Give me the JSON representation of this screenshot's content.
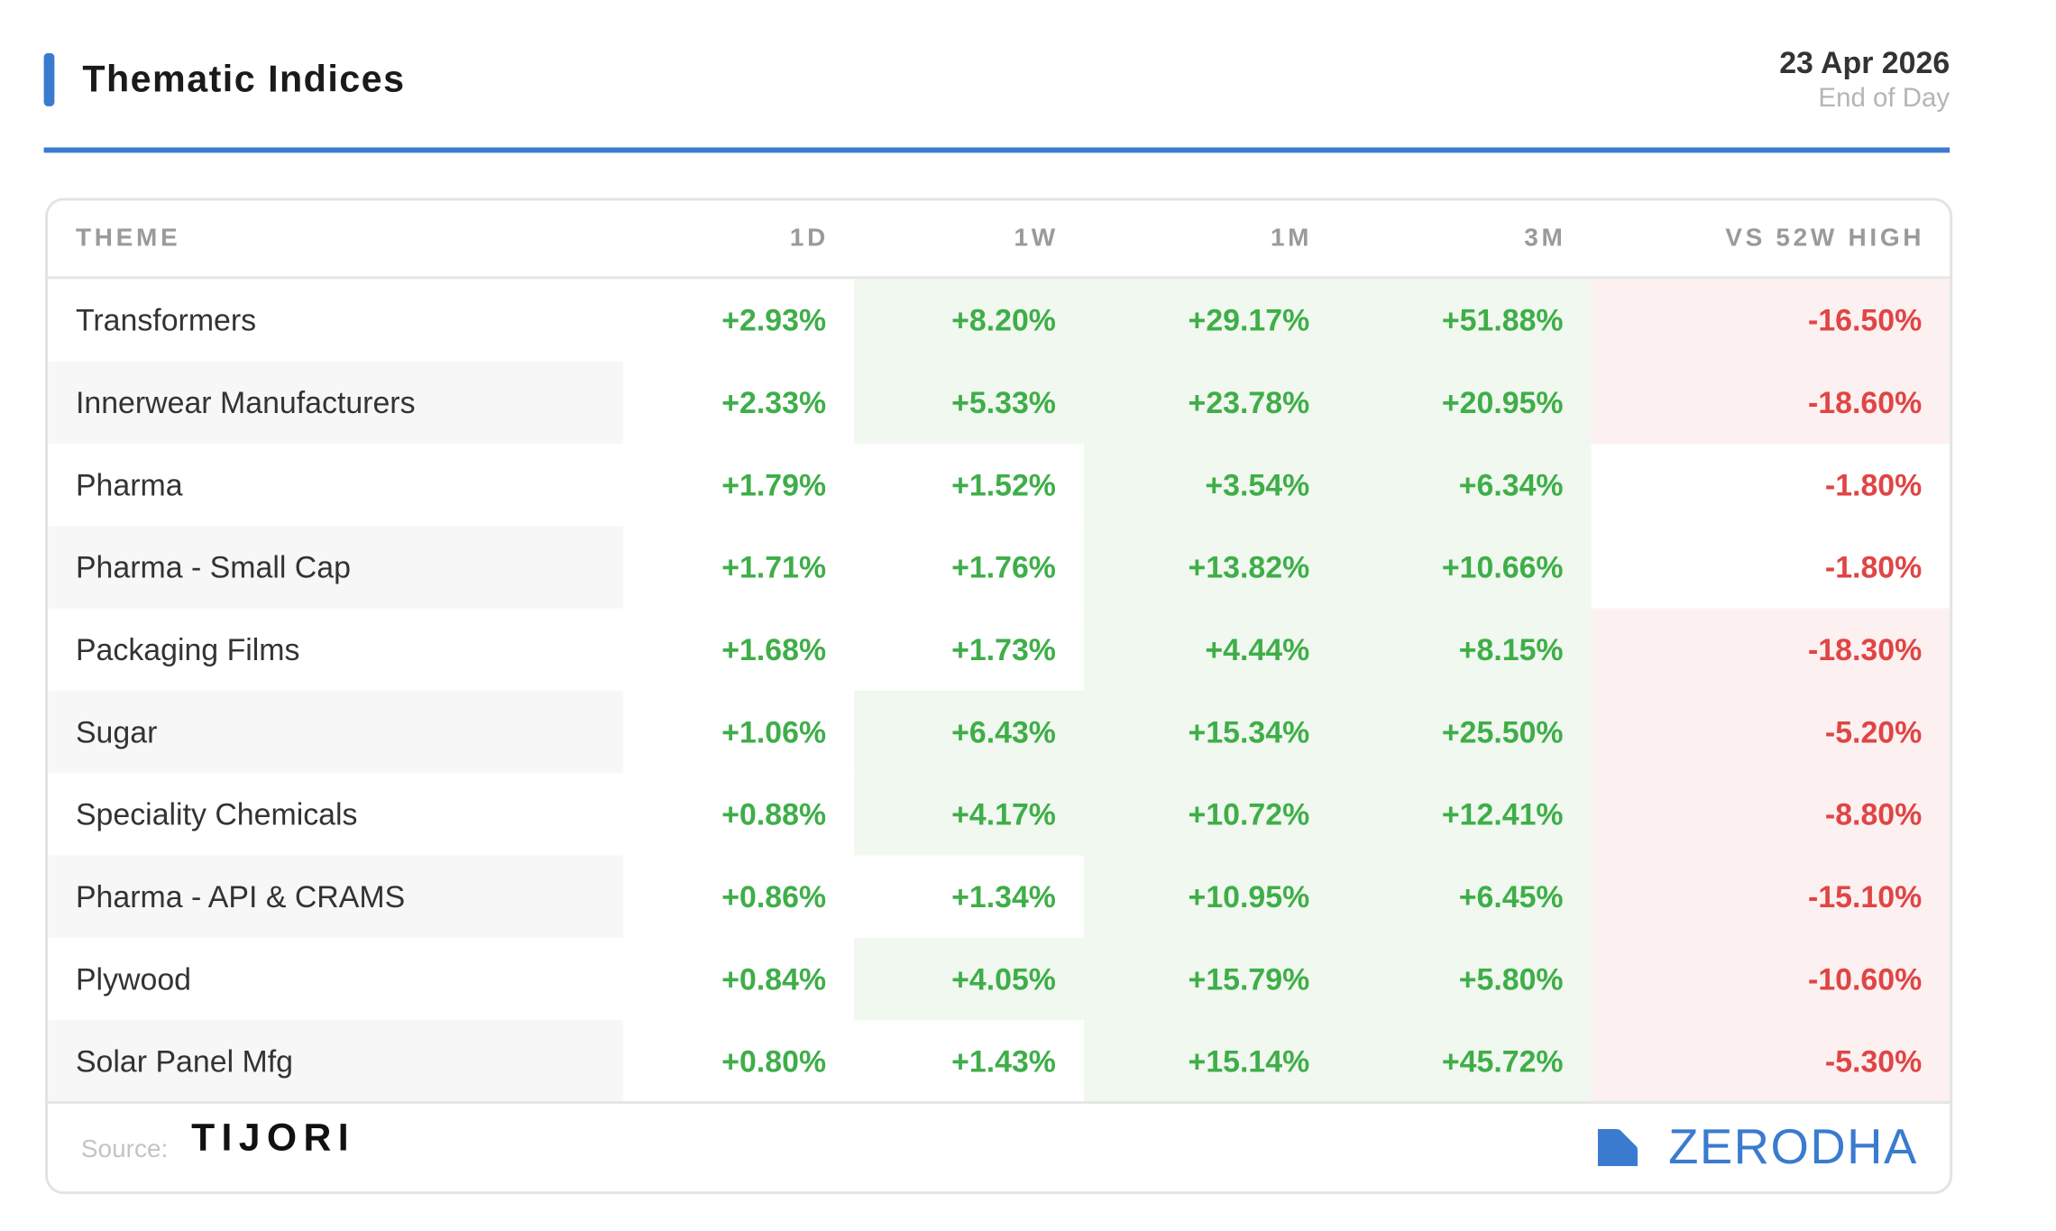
{
  "header": {
    "title": "Thematic Indices",
    "date": "23 Apr 2026",
    "subtitle": "End of Day"
  },
  "table": {
    "columns": [
      "THEME",
      "1D",
      "1W",
      "1M",
      "3M",
      "VS 52W HIGH"
    ],
    "rows": [
      {
        "theme": "Transformers",
        "values": [
          "+2.93%",
          "+8.20%",
          "+29.17%",
          "+51.88%",
          "-16.50%"
        ],
        "tints": [
          "none",
          "green",
          "green",
          "green",
          "red"
        ]
      },
      {
        "theme": "Innerwear Manufacturers",
        "values": [
          "+2.33%",
          "+5.33%",
          "+23.78%",
          "+20.95%",
          "-18.60%"
        ],
        "tints": [
          "none",
          "green",
          "green",
          "green",
          "red"
        ]
      },
      {
        "theme": "Pharma",
        "values": [
          "+1.79%",
          "+1.52%",
          "+3.54%",
          "+6.34%",
          "-1.80%"
        ],
        "tints": [
          "none",
          "none",
          "green",
          "green",
          "none"
        ]
      },
      {
        "theme": "Pharma - Small Cap",
        "values": [
          "+1.71%",
          "+1.76%",
          "+13.82%",
          "+10.66%",
          "-1.80%"
        ],
        "tints": [
          "none",
          "none",
          "green",
          "green",
          "none"
        ]
      },
      {
        "theme": "Packaging Films",
        "values": [
          "+1.68%",
          "+1.73%",
          "+4.44%",
          "+8.15%",
          "-18.30%"
        ],
        "tints": [
          "none",
          "none",
          "green",
          "green",
          "red"
        ]
      },
      {
        "theme": "Sugar",
        "values": [
          "+1.06%",
          "+6.43%",
          "+15.34%",
          "+25.50%",
          "-5.20%"
        ],
        "tints": [
          "none",
          "green",
          "green",
          "green",
          "red"
        ]
      },
      {
        "theme": "Speciality Chemicals",
        "values": [
          "+0.88%",
          "+4.17%",
          "+10.72%",
          "+12.41%",
          "-8.80%"
        ],
        "tints": [
          "none",
          "green",
          "green",
          "green",
          "red"
        ]
      },
      {
        "theme": "Pharma - API & CRAMS",
        "values": [
          "+0.86%",
          "+1.34%",
          "+10.95%",
          "+6.45%",
          "-15.10%"
        ],
        "tints": [
          "none",
          "none",
          "green",
          "green",
          "red"
        ]
      },
      {
        "theme": "Plywood",
        "values": [
          "+0.84%",
          "+4.05%",
          "+15.79%",
          "+5.80%",
          "-10.60%"
        ],
        "tints": [
          "none",
          "green",
          "green",
          "green",
          "red"
        ]
      },
      {
        "theme": "Solar Panel Mfg",
        "values": [
          "+0.80%",
          "+1.43%",
          "+15.14%",
          "+45.72%",
          "-5.30%"
        ],
        "tints": [
          "none",
          "none",
          "green",
          "green",
          "red"
        ]
      }
    ]
  },
  "footer": {
    "source_label": "Source:",
    "source_name": "TIJORI",
    "brand": "ZERODHA"
  }
}
